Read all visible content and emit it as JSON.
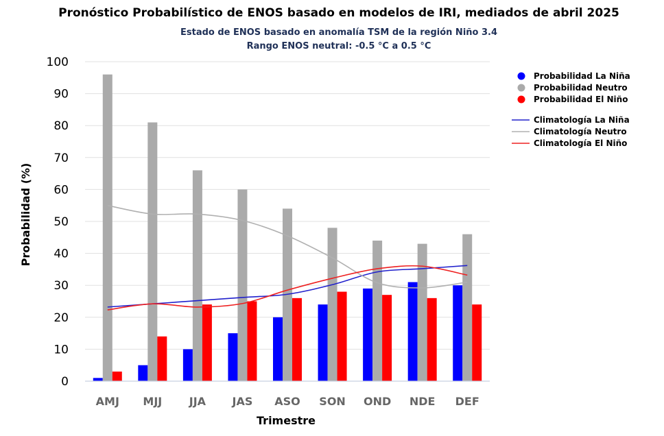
{
  "chart_data": {
    "type": "bar",
    "title": "Pronóstico Probabilístico de ENOS basado en modelos de IRI, mediados de abril 2025",
    "subtitle_lines": [
      "Estado de ENOS basado en anomalía TSM de la región Niño 3.4",
      "Rango ENOS neutral: -0.5 °C a 0.5 °C"
    ],
    "xlabel": "Trimestre",
    "ylabel": "Probabilidad (%)",
    "ylim": [
      0,
      100
    ],
    "yticks": [
      0,
      10,
      20,
      30,
      40,
      50,
      60,
      70,
      80,
      90,
      100
    ],
    "grid": true,
    "legend_position": "right",
    "categories": [
      "AMJ",
      "MJJ",
      "JJA",
      "JAS",
      "ASO",
      "SON",
      "OND",
      "NDE",
      "DEF"
    ],
    "series": [
      {
        "name": "Probabilidad La Niña",
        "color": "#0000ff",
        "values": [
          1,
          5,
          10,
          15,
          20,
          24,
          29,
          31,
          30
        ]
      },
      {
        "name": "Probabilidad Neutro",
        "color": "#aaaaaa",
        "values": [
          96,
          81,
          66,
          60,
          54,
          48,
          44,
          43,
          46
        ]
      },
      {
        "name": "Probabilidad El Niño",
        "color": "#ff0000",
        "values": [
          3,
          14,
          24,
          25,
          26,
          28,
          27,
          26,
          24
        ]
      }
    ],
    "climatology": [
      {
        "name": "Climatología La Niña",
        "color": "#2020cc",
        "values": [
          23.2,
          24.2,
          25.2,
          26.2,
          27.2,
          30.2,
          34.2,
          35.2,
          36.2
        ]
      },
      {
        "name": "Climatología Neutro",
        "color": "#b0b0b0",
        "values": [
          55,
          52.3,
          52.3,
          50.3,
          45.5,
          38.6,
          30.8,
          29.2,
          31.0
        ]
      },
      {
        "name": "Climatología El Niño",
        "color": "#ee2020",
        "values": [
          22.3,
          24.2,
          23.2,
          24.3,
          28.5,
          32.2,
          35.2,
          36.0,
          33.2
        ]
      }
    ]
  }
}
